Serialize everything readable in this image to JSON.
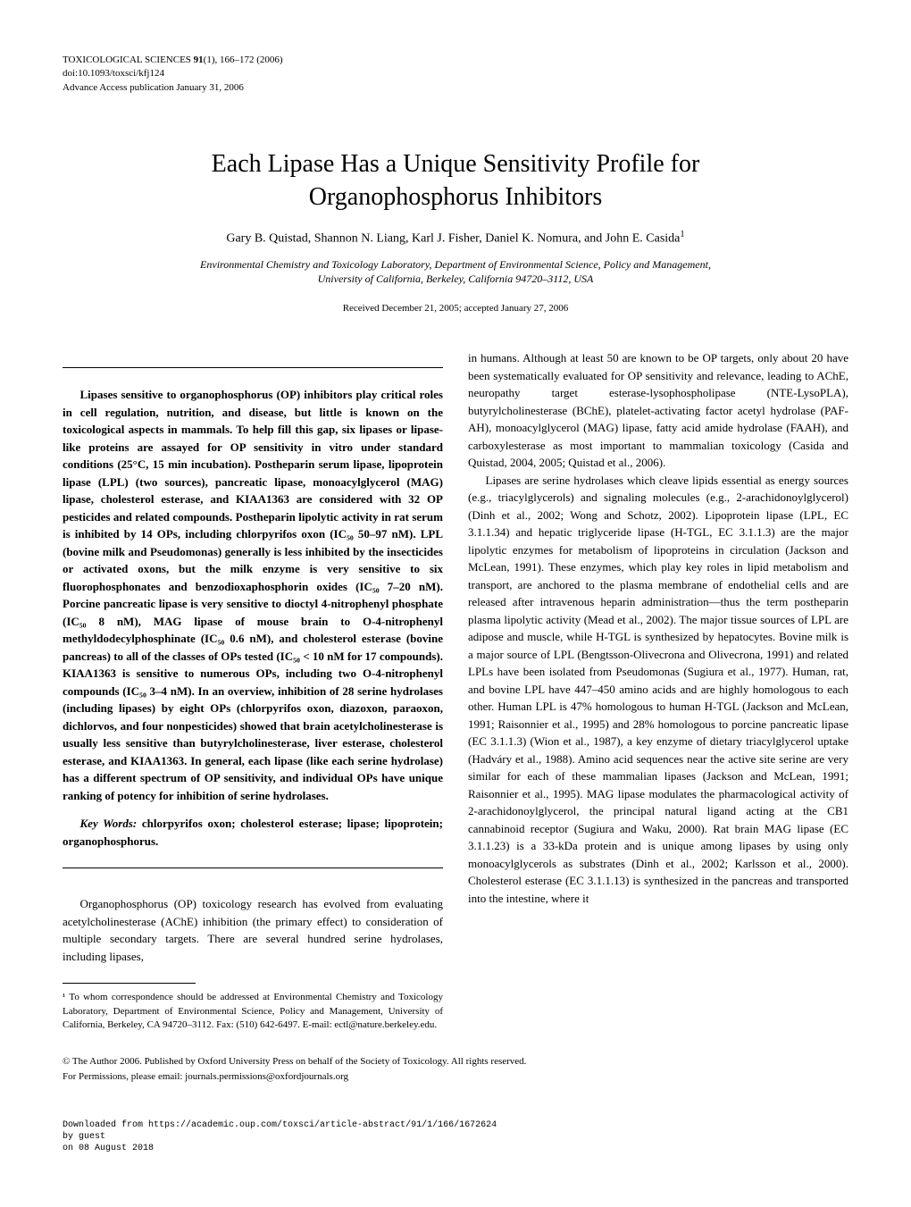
{
  "header": {
    "journal": "TOXICOLOGICAL SCIENCES",
    "volume": "91",
    "issue": "1",
    "pages": "166–172",
    "year": "(2006)",
    "doi": "doi:10.1093/toxsci/kfj124",
    "pubdate": "Advance Access publication January 31, 2006"
  },
  "title_line1": "Each Lipase Has a Unique Sensitivity Profile for",
  "title_line2": "Organophosphorus Inhibitors",
  "authors": "Gary B. Quistad, Shannon N. Liang, Karl J. Fisher, Daniel K. Nomura, and John E. Casida",
  "author_superscript": "1",
  "affiliation_line1": "Environmental Chemistry and Toxicology Laboratory, Department of Environmental Science, Policy and Management,",
  "affiliation_line2": "University of California, Berkeley, California 94720–3112, USA",
  "dates": "Received December 21, 2005; accepted January 27, 2006",
  "abstract": "Lipases sensitive to organophosphorus (OP) inhibitors play critical roles in cell regulation, nutrition, and disease, but little is known on the toxicological aspects in mammals. To help fill this gap, six lipases or lipase-like proteins are assayed for OP sensitivity in vitro under standard conditions (25°C, 15 min incubation). Postheparin serum lipase, lipoprotein lipase (LPL) (two sources), pancreatic lipase, monoacylglycerol (MAG) lipase, cholesterol esterase, and KIAA1363 are considered with 32 OP pesticides and related compounds. Postheparin lipolytic activity in rat serum is inhibited by 14 OPs, including chlorpyrifos oxon (IC₅₀ 50–97 nM). LPL (bovine milk and Pseudomonas) generally is less inhibited by the insecticides or activated oxons, but the milk enzyme is very sensitive to six fluorophosphonates and benzodioxaphosphorin oxides (IC₅₀ 7–20 nM). Porcine pancreatic lipase is very sensitive to dioctyl 4-nitrophenyl phosphate (IC₅₀ 8 nM), MAG lipase of mouse brain to O-4-nitrophenyl methyldodecylphosphinate (IC₅₀ 0.6 nM), and cholesterol esterase (bovine pancreas) to all of the classes of OPs tested (IC₅₀ < 10 nM for 17 compounds). KIAA1363 is sensitive to numerous OPs, including two O-4-nitrophenyl compounds (IC₅₀ 3–4 nM). In an overview, inhibition of 28 serine hydrolases (including lipases) by eight OPs (chlorpyrifos oxon, diazoxon, paraoxon, dichlorvos, and four nonpesticides) showed that brain acetylcholinesterase is usually less sensitive than butyrylcholinesterase, liver esterase, cholesterol esterase, and KIAA1363. In general, each lipase (like each serine hydrolase) has a different spectrum of OP sensitivity, and individual OPs have unique ranking of potency for inhibition of serine hydrolases.",
  "keywords_label": "Key Words:",
  "keywords": " chlorpyrifos oxon; cholesterol esterase; lipase; lipoprotein; organophosphorus.",
  "left_body": "Organophosphorus (OP) toxicology research has evolved from evaluating acetylcholinesterase (AChE) inhibition (the primary effect) to consideration of multiple secondary targets. There are several hundred serine hydrolases, including lipases,",
  "footnote": "¹ To whom correspondence should be addressed at Environmental Chemistry and Toxicology Laboratory, Department of Environmental Science, Policy and Management, University of California, Berkeley, CA 94720–3112. Fax: (510) 642-6497. E-mail: ectl@nature.berkeley.edu.",
  "right_para1": "in humans. Although at least 50 are known to be OP targets, only about 20 have been systematically evaluated for OP sensitivity and relevance, leading to AChE, neuropathy target esterase-lysophospholipase (NTE-LysoPLA), butyrylcholinesterase (BChE), platelet-activating factor acetyl hydrolase (PAF-AH), monoacylglycerol (MAG) lipase, fatty acid amide hydrolase (FAAH), and carboxylesterase as most important to mammalian toxicology (Casida and Quistad, 2004, 2005; Quistad et al., 2006).",
  "right_para2": "Lipases are serine hydrolases which cleave lipids essential as energy sources (e.g., triacylglycerols) and signaling molecules (e.g., 2-arachidonoylglycerol) (Dinh et al., 2002; Wong and Schotz, 2002). Lipoprotein lipase (LPL, EC 3.1.1.34) and hepatic triglyceride lipase (H-TGL, EC 3.1.1.3) are the major lipolytic enzymes for metabolism of lipoproteins in circulation (Jackson and McLean, 1991). These enzymes, which play key roles in lipid metabolism and transport, are anchored to the plasma membrane of endothelial cells and are released after intravenous heparin administration—thus the term postheparin plasma lipolytic activity (Mead et al., 2002). The major tissue sources of LPL are adipose and muscle, while H-TGL is synthesized by hepatocytes. Bovine milk is a major source of LPL (Bengtsson-Olivecrona and Olivecrona, 1991) and related LPLs have been isolated from Pseudomonas (Sugiura et al., 1977). Human, rat, and bovine LPL have 447–450 amino acids and are highly homologous to each other. Human LPL is 47% homologous to human H-TGL (Jackson and McLean, 1991; Raisonnier et al., 1995) and 28% homologous to porcine pancreatic lipase (EC 3.1.1.3) (Wion et al., 1987), a key enzyme of dietary triacylglycerol uptake (Hadváry et al., 1988). Amino acid sequences near the active site serine are very similar for each of these mammalian lipases (Jackson and McLean, 1991; Raisonnier et al., 1995). MAG lipase modulates the pharmacological activity of 2-arachidonoylglycerol, the principal natural ligand acting at the CB1 cannabinoid receptor (Sugiura and Waku, 2000). Rat brain MAG lipase (EC 3.1.1.23) is a 33-kDa protein and is unique among lipases by using only monoacylglycerols as substrates (Dinh et al., 2002; Karlsson et al., 2000). Cholesterol esterase (EC 3.1.1.13) is synthesized in the pancreas and transported into the intestine, where it",
  "copyright_line1": "© The Author 2006. Published by Oxford University Press on behalf of the Society of Toxicology. All rights reserved.",
  "copyright_line2": "For Permissions, please email: journals.permissions@oxfordjournals.org",
  "download_footer_line1": "Downloaded from https://academic.oup.com/toxsci/article-abstract/91/1/166/1672624",
  "download_footer_line2": "by guest",
  "download_footer_line3": "on 08 August 2018"
}
